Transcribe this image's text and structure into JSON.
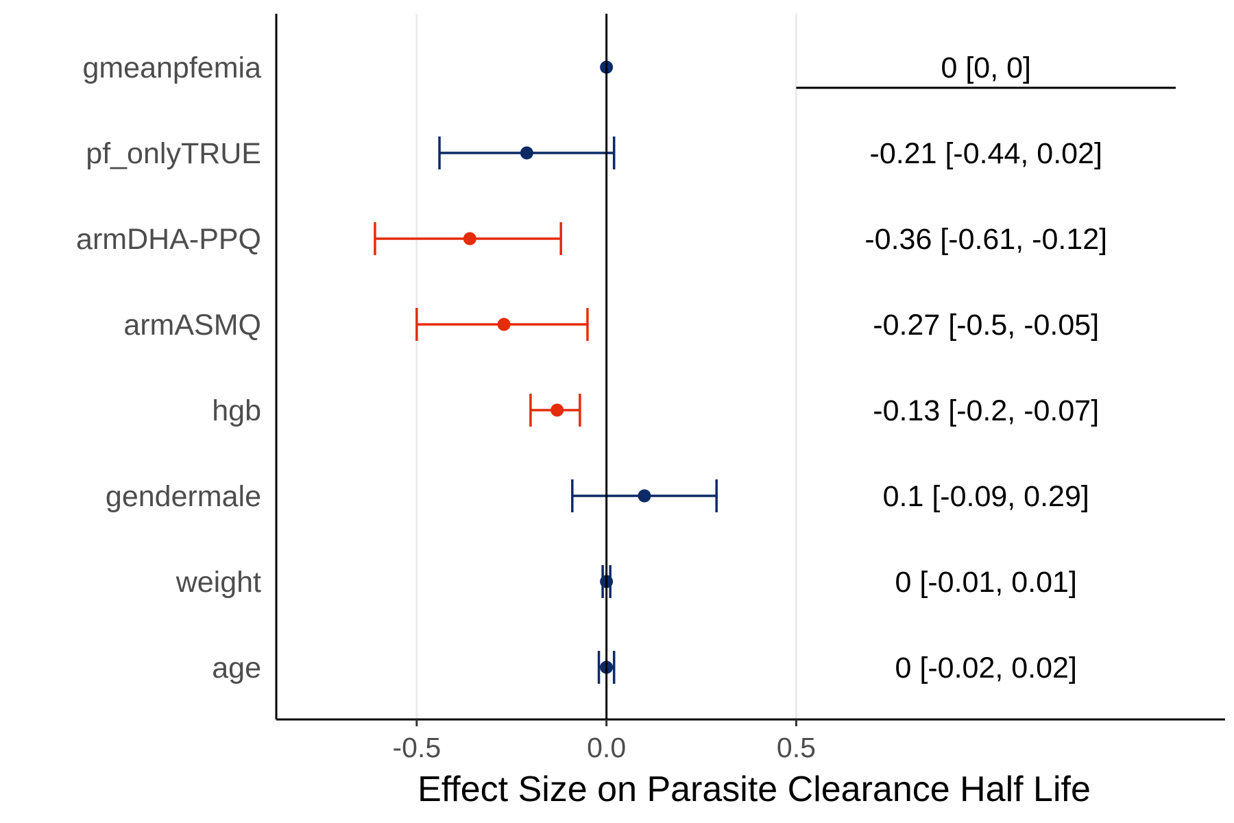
{
  "chart_data": {
    "type": "forest",
    "title": "",
    "xlabel": "Effect Size on Parasite Clearance Half Life",
    "ylabel": "",
    "xlim": [
      -0.87,
      1.63
    ],
    "x_ticks": [
      -0.5,
      0.0,
      0.5
    ],
    "x_tick_labels": [
      "-0.5",
      "0.0",
      "0.5"
    ],
    "grid": "vertical-major",
    "reference_line": 0,
    "legend": "none",
    "colors": {
      "nonsignificant": "#0c2a66",
      "significant": "#e52b0a"
    },
    "rows": [
      {
        "label": "gmeanpfemia",
        "estimate": 0,
        "lower": 0,
        "upper": 0,
        "significant": false,
        "text": "0 [0, 0]"
      },
      {
        "label": "pf_onlyTRUE",
        "estimate": -0.21,
        "lower": -0.44,
        "upper": 0.02,
        "significant": false,
        "text": "-0.21 [-0.44, 0.02]"
      },
      {
        "label": "armDHA-PPQ",
        "estimate": -0.36,
        "lower": -0.61,
        "upper": -0.12,
        "significant": true,
        "text": "-0.36 [-0.61, -0.12]"
      },
      {
        "label": "armASMQ",
        "estimate": -0.27,
        "lower": -0.5,
        "upper": -0.05,
        "significant": true,
        "text": "-0.27 [-0.5, -0.05]"
      },
      {
        "label": "hgb",
        "estimate": -0.13,
        "lower": -0.2,
        "upper": -0.07,
        "significant": true,
        "text": "-0.13 [-0.2, -0.07]"
      },
      {
        "label": "gendermale",
        "estimate": 0.1,
        "lower": -0.09,
        "upper": 0.29,
        "significant": false,
        "text": "0.1 [-0.09, 0.29]"
      },
      {
        "label": "weight",
        "estimate": 0,
        "lower": -0.01,
        "upper": 0.01,
        "significant": false,
        "text": "0 [-0.01, 0.01]"
      },
      {
        "label": "age",
        "estimate": 0,
        "lower": -0.02,
        "upper": 0.02,
        "significant": false,
        "text": "0 [-0.02, 0.02]"
      }
    ]
  }
}
